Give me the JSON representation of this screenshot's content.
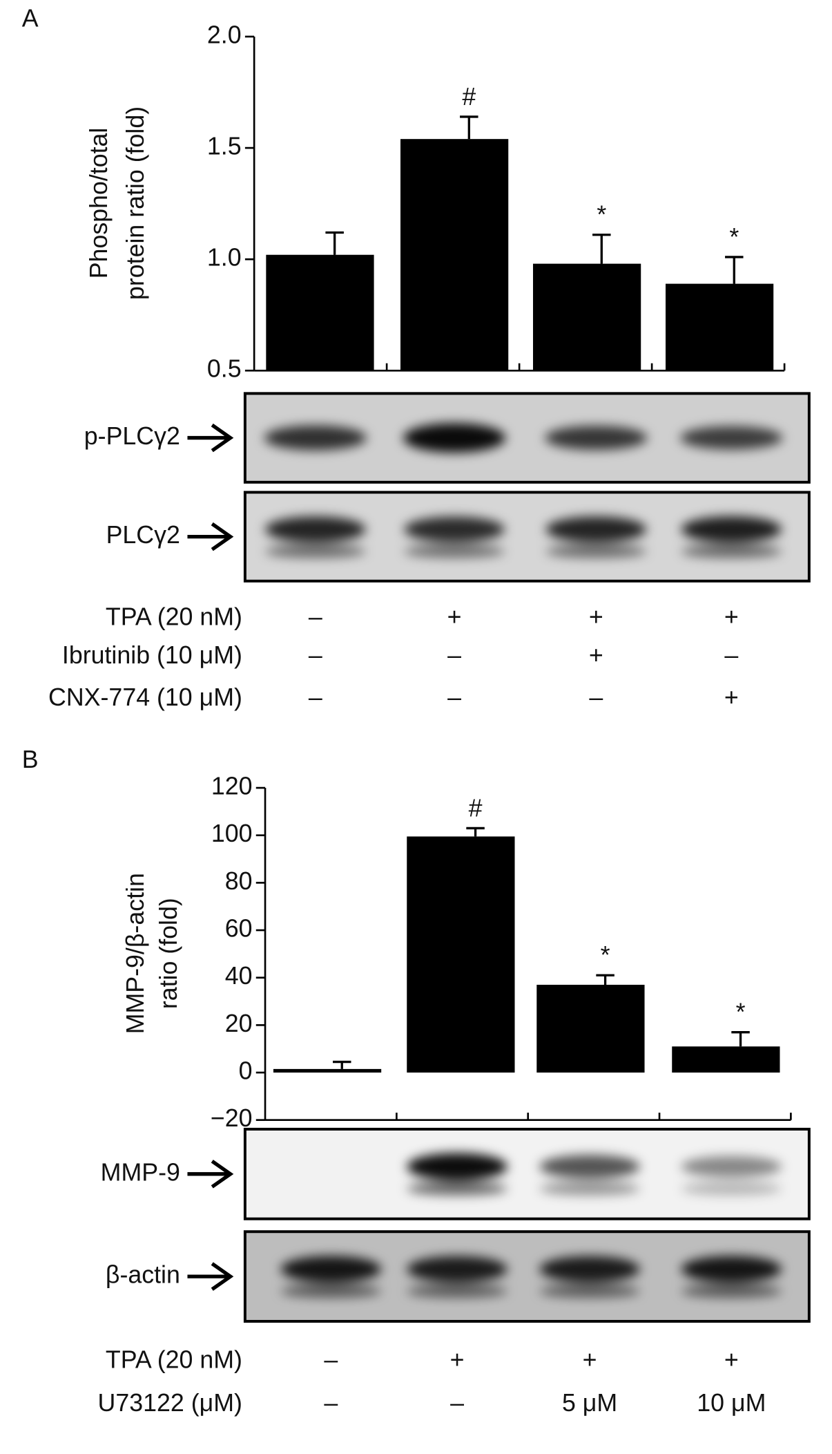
{
  "chart_data": [
    {
      "type": "bar",
      "panel": "A",
      "ylabel_lines": [
        "Phospho/total",
        "protein ratio (fold)"
      ],
      "categories": [
        null,
        null,
        null,
        null
      ],
      "values": [
        1.02,
        1.54,
        0.98,
        0.89
      ],
      "errors": [
        0.1,
        0.1,
        0.13,
        0.12
      ],
      "annotations": [
        null,
        "#",
        "*",
        "*"
      ],
      "color": "#000000",
      "ylim": [
        0.5,
        2.0
      ],
      "yticks": [
        {
          "value": 0.5,
          "label": "0.5"
        },
        {
          "value": 1.0,
          "label": "1.0"
        },
        {
          "value": 1.5,
          "label": "1.5"
        },
        {
          "value": 2.0,
          "label": "2.0"
        }
      ],
      "blots": [
        "p-PLCγ2",
        "PLCγ2"
      ],
      "conditions": [
        {
          "label": "TPA (20 nM)",
          "values": [
            "–",
            "+",
            "+",
            "+"
          ]
        },
        {
          "label": "Ibrutinib (10 μM)",
          "values": [
            "–",
            "–",
            "+",
            "–"
          ]
        },
        {
          "label": "CNX-774 (10 μM)",
          "values": [
            "–",
            "–",
            "–",
            "+"
          ]
        }
      ]
    },
    {
      "type": "bar",
      "panel": "B",
      "ylabel_lines": [
        "MMP-9/β-actin",
        "ratio (fold)"
      ],
      "categories": [
        null,
        null,
        null,
        null
      ],
      "values": [
        1.5,
        99.5,
        37,
        11
      ],
      "errors": [
        3,
        3.5,
        4,
        6
      ],
      "annotations": [
        null,
        "#",
        "*",
        "*"
      ],
      "color": "#000000",
      "ylim": [
        -20,
        120
      ],
      "yticks": [
        {
          "value": -20,
          "label": "−20"
        },
        0,
        20,
        40,
        60,
        80,
        100,
        120
      ],
      "blots": [
        "MMP-9",
        "β-actin"
      ],
      "conditions": [
        {
          "label": "TPA (20 nM)",
          "values": [
            "–",
            "+",
            "+",
            "+"
          ]
        },
        {
          "label": "U73122 (μM)",
          "values": [
            "–",
            "–",
            "5 μM",
            "10 μM"
          ]
        }
      ]
    }
  ]
}
